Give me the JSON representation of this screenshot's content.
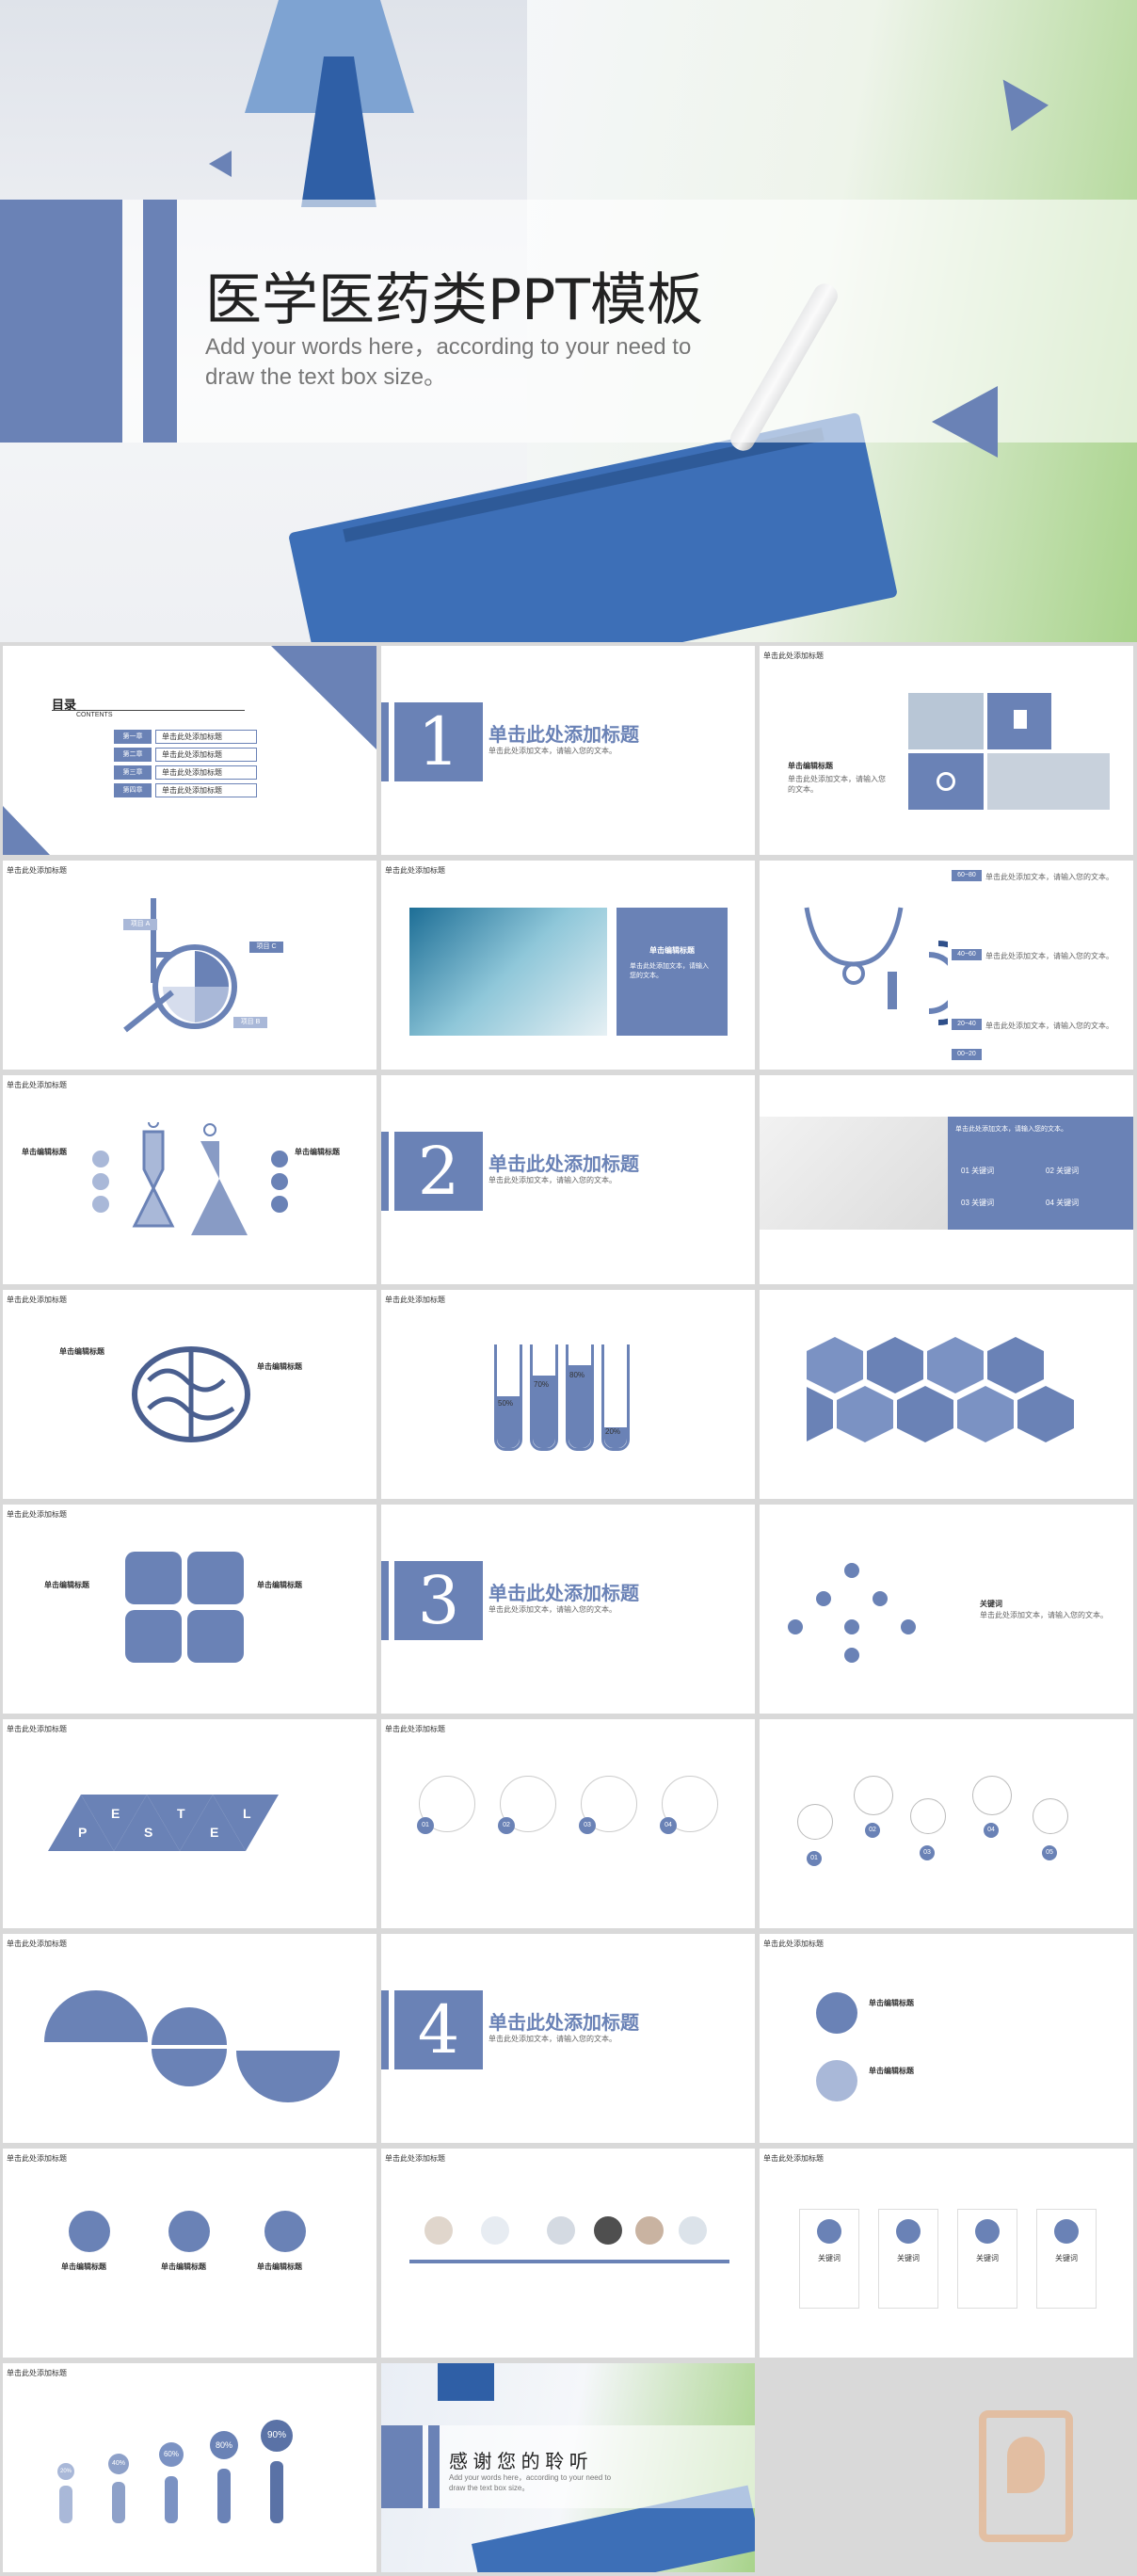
{
  "hero": {
    "title": "医学医药类PPT模板",
    "subtitle_line1": "Add your words here，according to  your need to",
    "subtitle_line2": "draw the text box size。"
  },
  "slides": {
    "toc": {
      "title": "目录",
      "subtitle": "CONTENTS",
      "items": [
        {
          "num": "第一章",
          "text": "单击此处添加标题"
        },
        {
          "num": "第二章",
          "text": "单击此处添加标题"
        },
        {
          "num": "第三章",
          "text": "单击此处添加标题"
        },
        {
          "num": "第四章",
          "text": "单击此处添加标题"
        }
      ]
    },
    "section_title": "单击此处添加标题",
    "section_desc": "单击此处添加文本，请输入您的文本。",
    "section_nums": [
      "1",
      "2",
      "3",
      "4"
    ],
    "slide_tag": "单击此处添加标题",
    "keyword": "关键词",
    "edit_title": "单击编辑标题",
    "percent_tubes": [
      "50%",
      "70%",
      "80%",
      "20%"
    ],
    "percent_people": [
      "20%",
      "40%",
      "60%",
      "80%",
      "90%"
    ],
    "pestel": [
      "P",
      "E",
      "S",
      "T",
      "E",
      "L"
    ],
    "numbers5": [
      "01",
      "02",
      "03",
      "04",
      "05"
    ],
    "numbers4": [
      "01",
      "02",
      "03",
      "04"
    ],
    "range_labels": [
      "60~80",
      "40~60",
      "20~40",
      "00~20"
    ],
    "thanks": {
      "title": "感 谢 您 的 聆 听",
      "line1": "Add your words here，according to  your need to",
      "line2": "draw the text box size。"
    },
    "subtitles": {
      "chart_b": "项目 A",
      "chart_c": "项目 C",
      "chart_d": "项目 B"
    }
  },
  "colors": {
    "accent": "#6a82b6",
    "light": "#a9b8d8",
    "bg": "#d9d9d9"
  },
  "icons": {
    "watermark": "p-logo-icon"
  }
}
